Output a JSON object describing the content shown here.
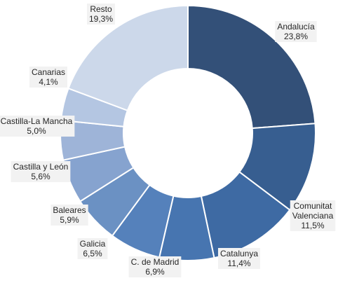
{
  "chart_data": {
    "type": "pie",
    "variant": "donut",
    "title": "",
    "legend": "none",
    "slices": [
      {
        "name": "Andalucía",
        "value": 23.8,
        "label_lines": [
          "Andalucía",
          "23,8%"
        ],
        "color": "#335078"
      },
      {
        "name": "Comunitat Valenciana",
        "value": 11.5,
        "label_lines": [
          "Comunitat",
          "Valenciana",
          "11,5%"
        ],
        "color": "#375e90"
      },
      {
        "name": "Catalunya",
        "value": 11.4,
        "label_lines": [
          "Catalunya",
          "11,4%"
        ],
        "color": "#3e6aa3"
      },
      {
        "name": "C. de Madrid",
        "value": 6.9,
        "label_lines": [
          "C. de Madrid",
          "6,9%"
        ],
        "color": "#4775b0"
      },
      {
        "name": "Galicia",
        "value": 6.5,
        "label_lines": [
          "Galicia",
          "6,5%"
        ],
        "color": "#5581bb"
      },
      {
        "name": "Baleares",
        "value": 5.9,
        "label_lines": [
          "Baleares",
          "5,9%"
        ],
        "color": "#6b91c3"
      },
      {
        "name": "Castilla y León",
        "value": 5.6,
        "label_lines": [
          "Castilla y León",
          "5,6%"
        ],
        "color": "#86a3cf"
      },
      {
        "name": "Castilla-La Mancha",
        "value": 5.0,
        "label_lines": [
          "Castilla-La Mancha",
          "5,0%"
        ],
        "color": "#9eb4d8"
      },
      {
        "name": "Canarias",
        "value": 4.1,
        "label_lines": [
          "Canarias",
          "4,1%"
        ],
        "color": "#b4c6e2"
      },
      {
        "name": "Resto",
        "value": 19.3,
        "label_lines": [
          "Resto",
          "19,3%"
        ],
        "color": "#ccd8ea"
      }
    ]
  }
}
